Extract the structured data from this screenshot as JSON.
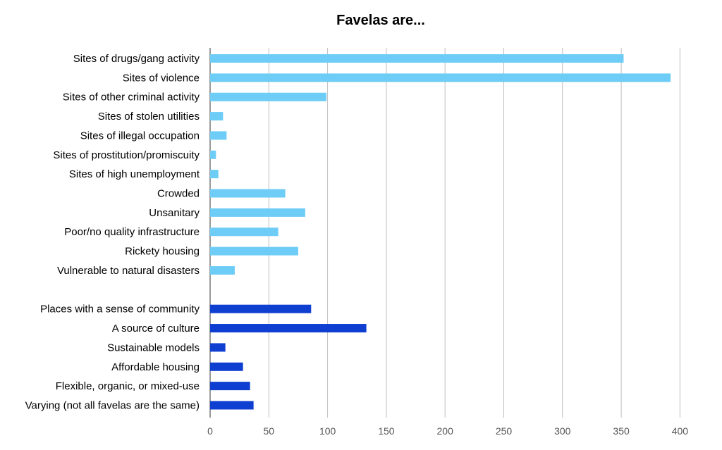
{
  "chart_data": {
    "type": "bar",
    "orientation": "horizontal",
    "title": "Favelas are...",
    "xlabel": "",
    "ylabel": "",
    "xlim": [
      0,
      420
    ],
    "x_ticks": [
      0,
      50,
      100,
      150,
      200,
      250,
      300,
      350,
      400
    ],
    "grid": true,
    "legend": "none",
    "colors": {
      "negative": "#6ecdf6",
      "positive": "#0e3fd0",
      "grid": "#bdbdbd",
      "axis": "#333333"
    },
    "categories": [
      "Sites of drugs/gang activity",
      "Sites of violence",
      "Sites of other criminal activity",
      "Sites of stolen utilities",
      "Sites of illegal occupation",
      "Sites of prostitution/promiscuity",
      "Sites of high unemployment",
      "Crowded",
      "Unsanitary",
      "Poor/no quality infrastructure",
      "Rickety housing",
      "Vulnerable to natural disasters",
      "",
      "Places with a sense of community",
      "A source of culture",
      "Sustainable models",
      "Affordable housing",
      "Flexible, organic, or mixed-use",
      "Varying (not all favelas are the same)"
    ],
    "values": [
      352,
      392,
      99,
      11,
      14,
      5,
      7,
      64,
      81,
      58,
      75,
      21,
      null,
      86,
      133,
      13,
      28,
      34,
      37
    ],
    "groups": [
      "negative",
      "negative",
      "negative",
      "negative",
      "negative",
      "negative",
      "negative",
      "negative",
      "negative",
      "negative",
      "negative",
      "negative",
      null,
      "positive",
      "positive",
      "positive",
      "positive",
      "positive",
      "positive"
    ]
  }
}
